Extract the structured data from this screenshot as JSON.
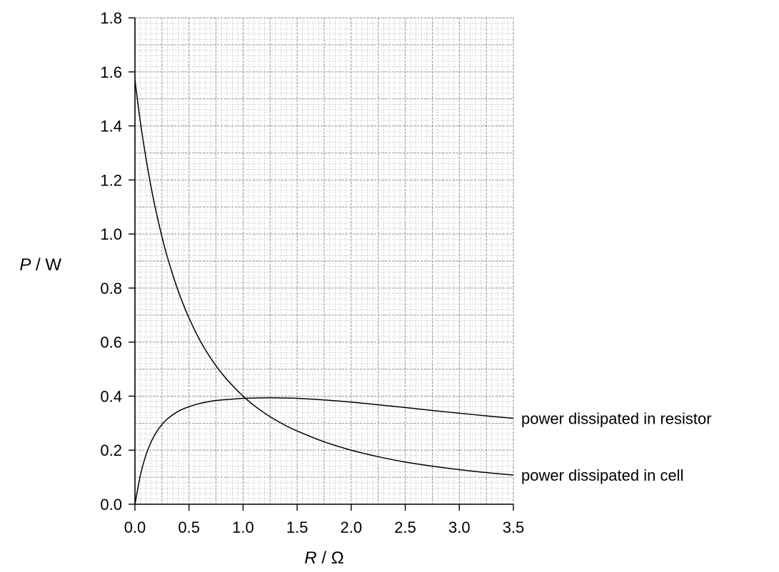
{
  "chart_data": {
    "type": "line",
    "x_label": {
      "var": "R",
      "unit": " / Ω"
    },
    "y_label": {
      "var": "P",
      "unit": " / W"
    },
    "xlim": [
      0,
      3.5
    ],
    "ylim": [
      0,
      1.8
    ],
    "x_ticks": [
      "0.0",
      "0.5",
      "1.0",
      "1.5",
      "2.0",
      "2.5",
      "3.0",
      "3.5"
    ],
    "y_ticks": [
      "0.0",
      "0.2",
      "0.4",
      "0.6",
      "0.8",
      "1.0",
      "1.2",
      "1.4",
      "1.6",
      "1.8"
    ],
    "grid": true,
    "series": [
      {
        "name": "power dissipated in resistor",
        "x": [
          0,
          0.05,
          0.1,
          0.15,
          0.2,
          0.25,
          0.3,
          0.4,
          0.5,
          0.6,
          0.7,
          0.8,
          0.9,
          1.0,
          1.1,
          1.2,
          1.25,
          1.3,
          1.4,
          1.5,
          1.75,
          2.0,
          2.25,
          2.5,
          2.75,
          3.0,
          3.25,
          3.5
        ],
        "y": [
          0,
          0.107,
          0.18,
          0.231,
          0.268,
          0.295,
          0.316,
          0.344,
          0.361,
          0.373,
          0.381,
          0.386,
          0.389,
          0.392,
          0.393,
          0.394,
          0.394,
          0.394,
          0.393,
          0.392,
          0.386,
          0.378,
          0.368,
          0.358,
          0.347,
          0.337,
          0.327,
          0.318
        ]
      },
      {
        "name": "power dissipated in cell",
        "x": [
          0,
          0.05,
          0.1,
          0.15,
          0.2,
          0.25,
          0.3,
          0.4,
          0.5,
          0.6,
          0.7,
          0.8,
          0.9,
          1.0,
          1.1,
          1.2,
          1.25,
          1.3,
          1.4,
          1.5,
          1.75,
          2.0,
          2.25,
          2.5,
          2.75,
          3.0,
          3.25,
          3.5
        ],
        "y": [
          1.57,
          1.415,
          1.285,
          1.172,
          1.075,
          0.99,
          0.914,
          0.789,
          0.689,
          0.607,
          0.541,
          0.486,
          0.44,
          0.4,
          0.366,
          0.337,
          0.324,
          0.312,
          0.29,
          0.271,
          0.231,
          0.2,
          0.176,
          0.156,
          0.141,
          0.128,
          0.117,
          0.108
        ]
      }
    ]
  }
}
